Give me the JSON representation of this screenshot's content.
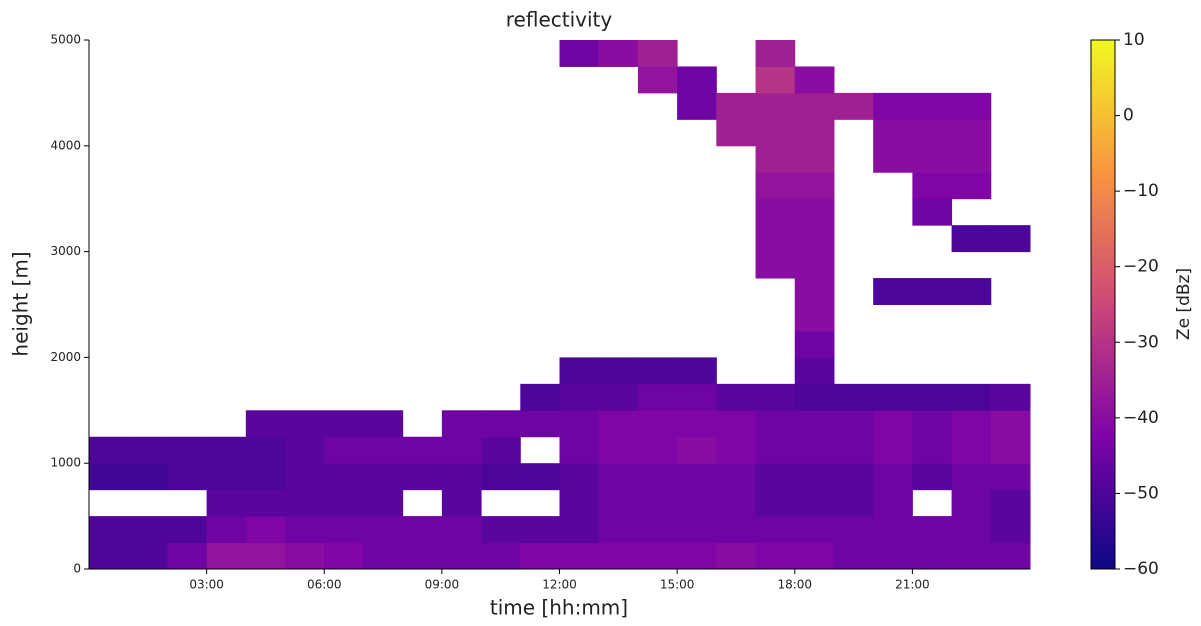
{
  "chart_data": {
    "type": "heatmap",
    "title": "reflectivity",
    "x_label": "time [hh:mm]",
    "y_label": "height [m]",
    "colorbar_label": "Ze [dBz]",
    "xlim": [
      0,
      24
    ],
    "xticks": [
      {
        "value": 3,
        "label": "03:00"
      },
      {
        "value": 6,
        "label": "06:00"
      },
      {
        "value": 9,
        "label": "09:00"
      },
      {
        "value": 12,
        "label": "12:00"
      },
      {
        "value": 15,
        "label": "15:00"
      },
      {
        "value": 18,
        "label": "18:00"
      },
      {
        "value": 21,
        "label": "21:00"
      }
    ],
    "ylim": [
      0,
      5000
    ],
    "yticks": [
      0,
      1000,
      2000,
      3000,
      4000,
      5000
    ],
    "clim": [
      -60,
      10
    ],
    "cticks": [
      {
        "value": -60,
        "label": "−60"
      },
      {
        "value": -50,
        "label": "−50"
      },
      {
        "value": -40,
        "label": "−40"
      },
      {
        "value": -30,
        "label": "−30"
      },
      {
        "value": -20,
        "label": "−20"
      },
      {
        "value": -10,
        "label": "−10"
      },
      0,
      10
    ],
    "colormap": [
      "#0d0887",
      "#7e03a8",
      "#cc4778",
      "#f89540",
      "#f0f921"
    ],
    "x_bin_hours": 1,
    "y_bin_m": 250,
    "z": [
      [
        -50,
        -50,
        -45,
        -38,
        -38,
        -40,
        -42,
        -45,
        -45,
        -45,
        -45,
        -42,
        -42,
        -42,
        -42,
        -42,
        -40,
        -42,
        -42,
        -45,
        -45,
        -45,
        -45,
        -45
      ],
      [
        -50,
        -50,
        -50,
        -45,
        -42,
        -45,
        -45,
        -45,
        -45,
        -45,
        -48,
        -48,
        -48,
        -45,
        -45,
        -45,
        -45,
        -45,
        -45,
        -45,
        -45,
        -45,
        -45,
        -48
      ],
      [
        null,
        null,
        null,
        -48,
        -48,
        -48,
        -48,
        -48,
        null,
        -48,
        null,
        null,
        -48,
        -45,
        -45,
        -45,
        -45,
        -48,
        -48,
        -48,
        -45,
        null,
        -45,
        -48
      ],
      [
        -52,
        -52,
        -50,
        -50,
        -50,
        -48,
        -48,
        -48,
        -48,
        -48,
        -50,
        -50,
        -48,
        -45,
        -45,
        -45,
        -45,
        -48,
        -48,
        -48,
        -45,
        -48,
        -45,
        -45
      ],
      [
        -50,
        -50,
        -50,
        -50,
        -50,
        -48,
        -45,
        -45,
        -45,
        -45,
        -48,
        null,
        -45,
        -42,
        -42,
        -40,
        -42,
        -45,
        -45,
        -45,
        -42,
        -45,
        -42,
        -40
      ],
      [
        null,
        null,
        null,
        null,
        -48,
        -48,
        -48,
        -48,
        null,
        -45,
        -45,
        -45,
        -45,
        -42,
        -42,
        -42,
        -42,
        -45,
        -45,
        -45,
        -42,
        -45,
        -42,
        -40
      ],
      [
        null,
        null,
        null,
        null,
        null,
        null,
        null,
        null,
        null,
        null,
        null,
        -50,
        -48,
        -48,
        -45,
        -45,
        -48,
        -48,
        -50,
        -50,
        -50,
        -50,
        -50,
        -48
      ],
      [
        null,
        null,
        null,
        null,
        null,
        null,
        null,
        null,
        null,
        null,
        null,
        null,
        -50,
        -50,
        -50,
        -50,
        null,
        null,
        -48,
        null,
        null,
        null,
        null,
        null
      ],
      [
        null,
        null,
        null,
        null,
        null,
        null,
        null,
        null,
        null,
        null,
        null,
        null,
        null,
        null,
        null,
        null,
        null,
        null,
        -45,
        null,
        null,
        null,
        null,
        null
      ],
      [
        null,
        null,
        null,
        null,
        null,
        null,
        null,
        null,
        null,
        null,
        null,
        null,
        null,
        null,
        null,
        null,
        null,
        null,
        -40,
        null,
        null,
        null,
        null,
        null
      ],
      [
        null,
        null,
        null,
        null,
        null,
        null,
        null,
        null,
        null,
        null,
        null,
        null,
        null,
        null,
        null,
        null,
        null,
        null,
        -40,
        null,
        -50,
        -50,
        -50,
        null
      ],
      [
        null,
        null,
        null,
        null,
        null,
        null,
        null,
        null,
        null,
        null,
        null,
        null,
        null,
        null,
        null,
        null,
        null,
        -40,
        -40,
        null,
        null,
        null,
        null,
        null
      ],
      [
        null,
        null,
        null,
        null,
        null,
        null,
        null,
        null,
        null,
        null,
        null,
        null,
        null,
        null,
        null,
        null,
        null,
        -40,
        -40,
        null,
        null,
        null,
        -50,
        -50
      ],
      [
        null,
        null,
        null,
        null,
        null,
        null,
        null,
        null,
        null,
        null,
        null,
        null,
        null,
        null,
        null,
        null,
        null,
        -40,
        -40,
        null,
        null,
        -45,
        null,
        null
      ],
      [
        null,
        null,
        null,
        null,
        null,
        null,
        null,
        null,
        null,
        null,
        null,
        null,
        null,
        null,
        null,
        null,
        null,
        -38,
        -38,
        null,
        null,
        -42,
        -42,
        null
      ],
      [
        null,
        null,
        null,
        null,
        null,
        null,
        null,
        null,
        null,
        null,
        null,
        null,
        null,
        null,
        null,
        null,
        null,
        -35,
        -35,
        null,
        -40,
        -40,
        -40,
        null
      ],
      [
        null,
        null,
        null,
        null,
        null,
        null,
        null,
        null,
        null,
        null,
        null,
        null,
        null,
        null,
        null,
        null,
        -35,
        -35,
        -35,
        null,
        -40,
        -40,
        -40,
        null
      ],
      [
        null,
        null,
        null,
        null,
        null,
        null,
        null,
        null,
        null,
        null,
        null,
        null,
        null,
        null,
        null,
        -45,
        -35,
        -35,
        -35,
        -35,
        -42,
        -42,
        -42,
        null
      ],
      [
        null,
        null,
        null,
        null,
        null,
        null,
        null,
        null,
        null,
        null,
        null,
        null,
        null,
        null,
        -38,
        -45,
        null,
        -30,
        -40,
        null,
        null,
        null,
        null,
        null
      ],
      [
        null,
        null,
        null,
        null,
        null,
        null,
        null,
        null,
        null,
        null,
        null,
        null,
        -45,
        -40,
        -35,
        null,
        null,
        -35,
        null,
        null,
        null,
        null,
        null,
        null
      ]
    ]
  }
}
